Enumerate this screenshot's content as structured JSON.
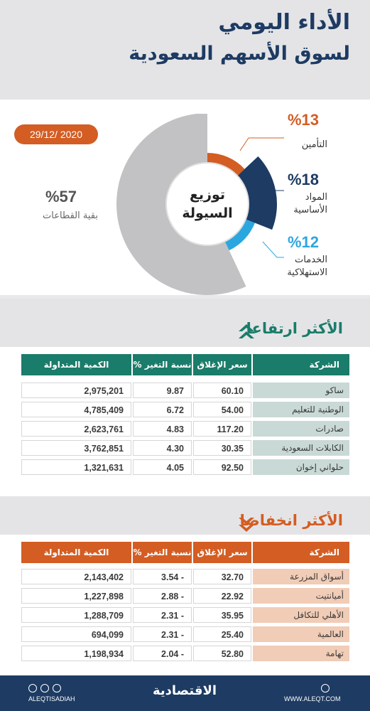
{
  "header": {
    "title_line1": "الأداء اليومي",
    "title_line2": "لسوق الأسهم السعودية"
  },
  "date": "29/12/ 2020",
  "liquidity": {
    "center_line1": "توزيع",
    "center_line2": "السيولة",
    "segments": [
      {
        "label": "التأمين",
        "percent_text": "%13",
        "value": 13,
        "color": "#d35d23"
      },
      {
        "label_line1": "المواد",
        "label_line2": "الأساسية",
        "percent_text": "%18",
        "value": 18,
        "color": "#1d3b63"
      },
      {
        "label_line1": "الخدمات",
        "label_line2": "الاستهلاكية",
        "percent_text": "%12",
        "value": 12,
        "color": "#2ba7e0"
      },
      {
        "label": "بقية القطاعات",
        "percent_text": "%57",
        "value": 57,
        "color": "#c2c2c4"
      }
    ]
  },
  "gainers": {
    "title": "الأكثر ارتفاعا",
    "headers": {
      "company": "الشركة",
      "close": "سعر الإغلاق",
      "change": "نسبة التغير %",
      "volume": "الكمية المتداولة"
    },
    "rows": [
      {
        "company": "ساكو",
        "close": "60.10",
        "change": "9.87",
        "volume": "2,975,201"
      },
      {
        "company": "الوطنية للتعليم",
        "close": "54.00",
        "change": "6.72",
        "volume": "4,785,409"
      },
      {
        "company": "صادرات",
        "close": "117.20",
        "change": "4.83",
        "volume": "2,623,761"
      },
      {
        "company": "الكابلات السعودية",
        "close": "30.35",
        "change": "4.30",
        "volume": "3,762,851"
      },
      {
        "company": "حلواني إخوان",
        "close": "92.50",
        "change": "4.05",
        "volume": "1,321,631"
      }
    ]
  },
  "losers": {
    "title": "الأكثر انخفاضا",
    "headers": {
      "company": "الشركة",
      "close": "سعر الإغلاق",
      "change": "نسبة التغير %",
      "volume": "الكمية المتداولة"
    },
    "rows": [
      {
        "company": "أسواق المزرعة",
        "close": "32.70",
        "change": "3.54 -",
        "volume": "2,143,402"
      },
      {
        "company": "أميانتيت",
        "close": "22.92",
        "change": "2.88 -",
        "volume": "1,227,898"
      },
      {
        "company": "الأهلي للتكافل",
        "close": "35.95",
        "change": "2.31 -",
        "volume": "1,288,709"
      },
      {
        "company": "العالمية",
        "close": "25.40",
        "change": "2.31 -",
        "volume": "694,099"
      },
      {
        "company": "تهامة",
        "close": "52.80",
        "change": "2.04 -",
        "volume": "1,198,934"
      }
    ]
  },
  "footer": {
    "handle": "ALEQTISADIAH",
    "brand": "الاقتصادية",
    "website": "WWW.ALEQT.COM"
  }
}
